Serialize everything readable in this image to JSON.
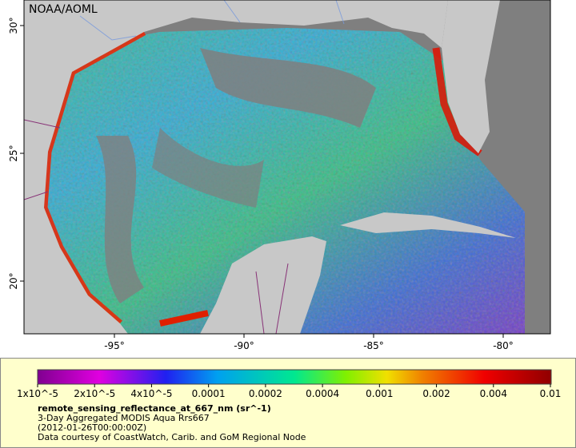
{
  "map": {
    "watermark": "NOAA/AOML",
    "x_axis_labels": [
      "-95°",
      "-90°",
      "-85°",
      "-80°"
    ],
    "y_axis_labels": [
      "30°",
      "25°",
      "20°"
    ]
  },
  "colorbar": {
    "labels": [
      "1x10^-5",
      "2x10^-5",
      "4x10^-5",
      "0.0001",
      "0.0002",
      "0.0004",
      "0.001",
      "0.002",
      "0.004",
      "0.01"
    ]
  },
  "caption": {
    "title": "remote_sensing_reflectance_at_667_nm (sr^-1)",
    "lines": [
      "3-Day Aggregated MODIS Aqua Rrs667",
      "(2012-01-26T00:00:00Z)",
      "Data courtesy of CoastWatch, Carib. and GoM Regional Node"
    ]
  }
}
